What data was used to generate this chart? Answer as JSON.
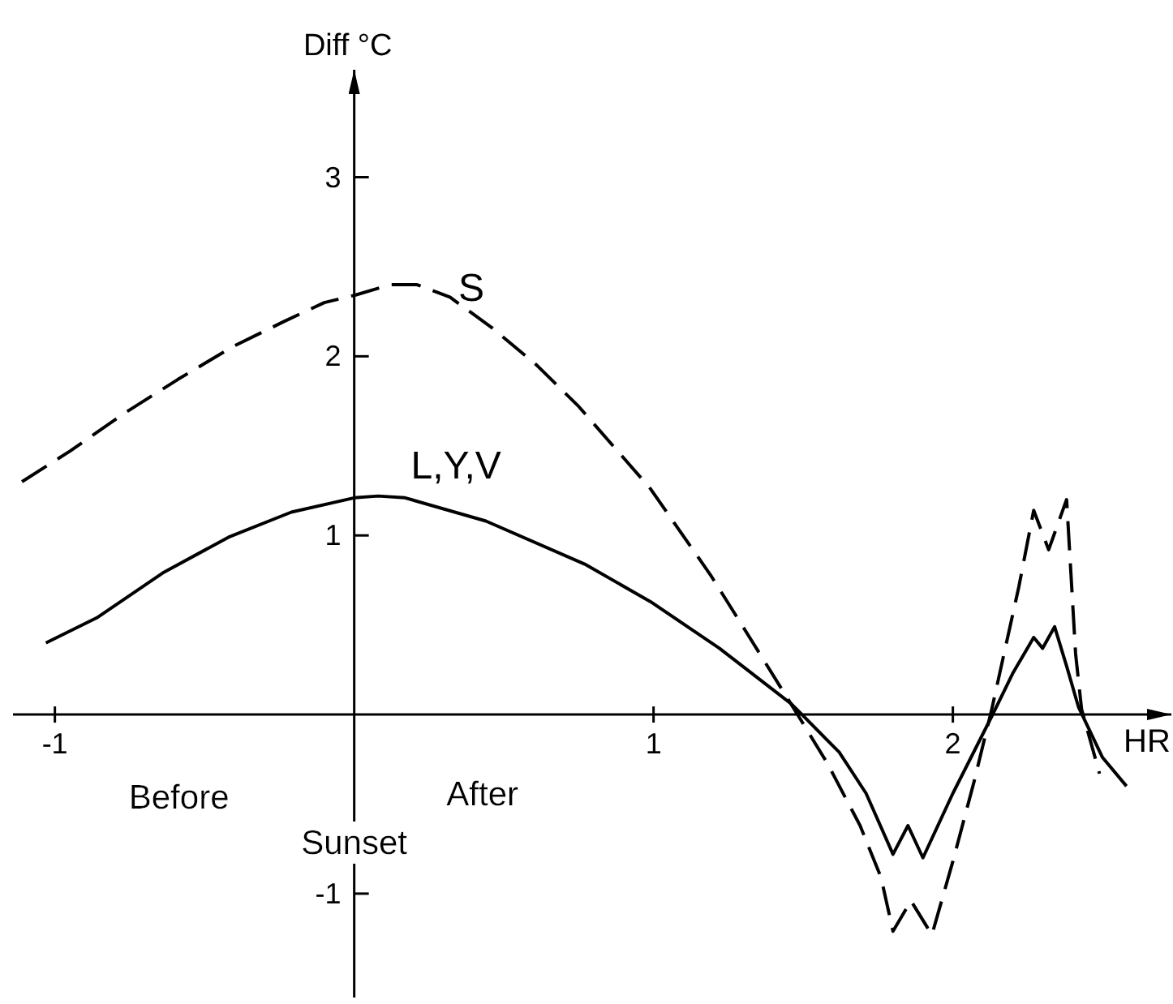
{
  "chart_data": {
    "type": "line",
    "xlabel": "HR",
    "ylabel": "Diff °C",
    "annotations": [
      "Before",
      "After",
      "Sunset"
    ],
    "xlim": [
      -1.14,
      2.73
    ],
    "ylim": [
      -1.58,
      3.6
    ],
    "xticks": [
      -1,
      1,
      2
    ],
    "yticks": [
      -1,
      1,
      2,
      3
    ],
    "marker": "none",
    "series": [
      {
        "name": "S",
        "color": "#000000",
        "line_style": "dashed",
        "x": [
          -1.11,
          -0.95,
          -0.77,
          -0.59,
          -0.41,
          -0.24,
          -0.1,
          0,
          0.12,
          0.21,
          0.32,
          0.46,
          0.61,
          0.75,
          0.99,
          1.19,
          1.31,
          1.47,
          1.58,
          1.69,
          1.76,
          1.8,
          1.86,
          1.93,
          2.0,
          2.07,
          2.13,
          2.22,
          2.27,
          2.32,
          2.38,
          2.41,
          2.43,
          2.49
        ],
        "values": [
          1.3,
          1.47,
          1.68,
          1.87,
          2.05,
          2.19,
          2.3,
          2.34,
          2.4,
          2.4,
          2.33,
          2.16,
          1.95,
          1.72,
          1.26,
          0.78,
          0.46,
          0.03,
          -0.27,
          -0.62,
          -0.91,
          -1.21,
          -1.04,
          -1.23,
          -0.82,
          -0.38,
          0.03,
          0.71,
          1.14,
          0.92,
          1.2,
          0.34,
          0.03,
          -0.33
        ]
      },
      {
        "name": "L,Y,V",
        "color": "#000000",
        "line_style": "solid",
        "x": [
          -1.03,
          -0.86,
          -0.64,
          -0.42,
          -0.21,
          0,
          0.08,
          0.17,
          0.44,
          0.77,
          0.99,
          1.22,
          1.46,
          1.49,
          1.62,
          1.71,
          1.8,
          1.85,
          1.9,
          2.0,
          2.13,
          2.2,
          2.27,
          2.3,
          2.34,
          2.38,
          2.42,
          2.5,
          2.58
        ],
        "values": [
          0.4,
          0.54,
          0.79,
          0.99,
          1.13,
          1.21,
          1.22,
          1.21,
          1.08,
          0.84,
          0.63,
          0.37,
          0.06,
          0.01,
          -0.21,
          -0.44,
          -0.78,
          -0.62,
          -0.8,
          -0.44,
          -0.01,
          0.23,
          0.43,
          0.37,
          0.49,
          0.27,
          0.04,
          -0.24,
          -0.4
        ]
      }
    ]
  }
}
